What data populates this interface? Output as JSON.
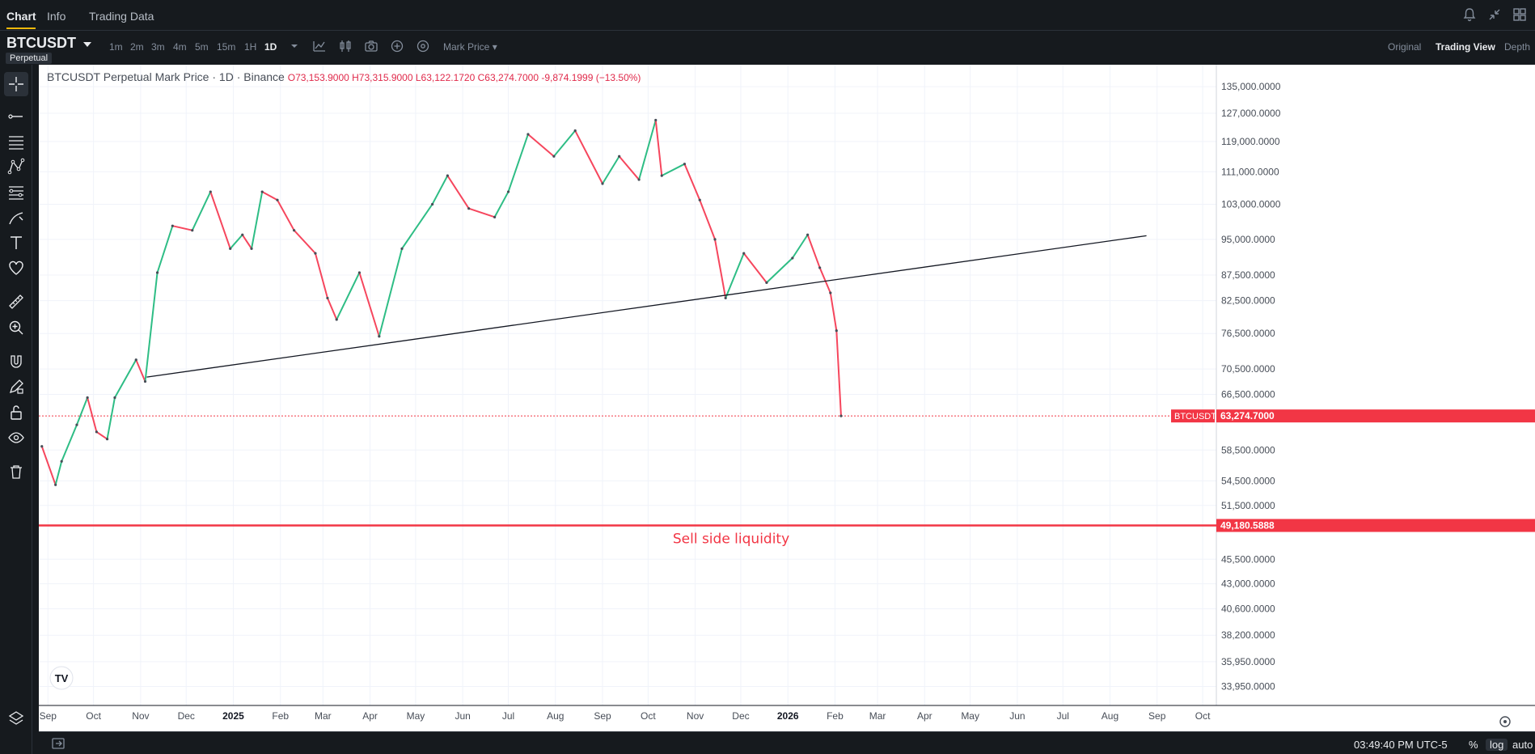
{
  "header": {
    "tabs": [
      {
        "label": "Chart",
        "active": true
      },
      {
        "label": "Info",
        "active": false
      },
      {
        "label": "Trading Data",
        "active": false
      }
    ],
    "icons": [
      "bell-icon",
      "collapse-icon",
      "grid-icon"
    ]
  },
  "toolbar": {
    "symbol": "BTCUSDT",
    "contract": "Perpetual",
    "intervals": [
      "1m",
      "2m",
      "3m",
      "4m",
      "5m",
      "15m",
      "1H",
      "1D"
    ],
    "active_interval": "1D",
    "price_type": "Mark Price",
    "views": [
      "Original",
      "Trading View",
      "Depth"
    ],
    "active_view": "Trading View"
  },
  "legend": {
    "title": "BTCUSDT Perpetual Mark Price · 1D · Binance",
    "values": "O73,153.9000  H73,315.9000  L63,122.1720  C63,274.7000  -9,874.1999 (−13.50%)"
  },
  "annotations": {
    "liquidity_text": "Sell side liquidity",
    "liquidity_price": 49180.5888,
    "liquidity_label": "49,180.5888",
    "last_price_label": "63,274.7000",
    "last_price_symbol": "BTCUSDT",
    "trendline": {
      "from": {
        "date": "2024-11-05",
        "price": 69200
      },
      "to": {
        "date": "2026-08-25",
        "price": 95800
      }
    }
  },
  "axes": {
    "y_scale": "log",
    "y_ticks": [
      "135,000.0000",
      "127,000.0000",
      "119,000.0000",
      "111,000.0000",
      "103,000.0000",
      "95,000.0000",
      "87,500.0000",
      "82,500.0000",
      "76,500.0000",
      "70,500.0000",
      "66,500.0000",
      "58,500.0000",
      "54,500.0000",
      "51,500.0000",
      "45,500.0000",
      "43,000.0000",
      "40,600.0000",
      "38,200.0000",
      "35,950.0000",
      "33,950.0000"
    ],
    "y_tick_values": [
      135000,
      127000,
      119000,
      111000,
      103000,
      95000,
      87500,
      82500,
      76500,
      70500,
      66500,
      58500,
      54500,
      51500,
      45500,
      43000,
      40600,
      38200,
      35950,
      33950
    ],
    "x_ticks": [
      "Sep",
      "Oct",
      "Nov",
      "Dec",
      "2025",
      "Feb",
      "Mar",
      "Apr",
      "May",
      "Jun",
      "Jul",
      "Aug",
      "Sep",
      "Oct",
      "Nov",
      "Dec",
      "2026",
      "Feb",
      "Mar",
      "Apr",
      "May",
      "Jun",
      "Jul",
      "Aug",
      "Sep",
      "Oct"
    ],
    "x_tick_dates": [
      "2024-09-01",
      "2024-10-01",
      "2024-11-01",
      "2024-12-01",
      "2025-01-01",
      "2025-02-01",
      "2025-03-01",
      "2025-04-01",
      "2025-05-01",
      "2025-06-01",
      "2025-07-01",
      "2025-08-01",
      "2025-09-01",
      "2025-10-01",
      "2025-11-01",
      "2025-12-01",
      "2026-01-01",
      "2026-02-01",
      "2026-03-01",
      "2026-04-01",
      "2026-05-01",
      "2026-06-01",
      "2026-07-01",
      "2026-08-01",
      "2026-09-01",
      "2026-10-01"
    ]
  },
  "chart_data": {
    "type": "line",
    "y_scale": "log",
    "ylim": [
      32500,
      142000
    ],
    "xlim": [
      "2024-08-26",
      "2026-10-10"
    ],
    "series": [
      {
        "values": [
          [
            "2024-08-28",
            59000
          ],
          [
            "2024-09-06",
            54000
          ],
          [
            "2024-09-10",
            57000
          ],
          [
            "2024-09-20",
            62000
          ],
          [
            "2024-09-27",
            66000
          ],
          [
            "2024-10-03",
            61000
          ],
          [
            "2024-10-10",
            60000
          ],
          [
            "2024-10-15",
            66000
          ],
          [
            "2024-10-29",
            72000
          ],
          [
            "2024-11-04",
            68500
          ],
          [
            "2024-11-12",
            88000
          ],
          [
            "2024-11-22",
            98000
          ],
          [
            "2024-12-05",
            97000
          ],
          [
            "2024-12-17",
            106000
          ],
          [
            "2024-12-30",
            93000
          ],
          [
            "2025-01-07",
            96000
          ],
          [
            "2025-01-13",
            93000
          ],
          [
            "2025-01-20",
            106000
          ],
          [
            "2025-01-30",
            104000
          ],
          [
            "2025-02-10",
            97000
          ],
          [
            "2025-02-24",
            92000
          ],
          [
            "2025-03-04",
            83000
          ],
          [
            "2025-03-10",
            79000
          ],
          [
            "2025-03-25",
            88000
          ],
          [
            "2025-04-07",
            76000
          ],
          [
            "2025-04-22",
            93000
          ],
          [
            "2025-05-12",
            103000
          ],
          [
            "2025-05-22",
            110000
          ],
          [
            "2025-06-05",
            102000
          ],
          [
            "2025-06-22",
            100000
          ],
          [
            "2025-07-01",
            106000
          ],
          [
            "2025-07-14",
            121000
          ],
          [
            "2025-07-31",
            115000
          ],
          [
            "2025-08-14",
            122000
          ],
          [
            "2025-09-01",
            108000
          ],
          [
            "2025-09-12",
            115000
          ],
          [
            "2025-09-25",
            109000
          ],
          [
            "2025-10-06",
            125000
          ],
          [
            "2025-10-10",
            110000
          ],
          [
            "2025-10-25",
            113000
          ],
          [
            "2025-11-04",
            104000
          ],
          [
            "2025-11-14",
            95000
          ],
          [
            "2025-11-21",
            83000
          ],
          [
            "2025-12-03",
            92000
          ],
          [
            "2025-12-18",
            86000
          ],
          [
            "2026-01-04",
            91000
          ],
          [
            "2026-01-14",
            96000
          ],
          [
            "2026-01-22",
            89000
          ],
          [
            "2026-01-29",
            84000
          ],
          [
            "2026-02-02",
            77000
          ],
          [
            "2026-02-05",
            63274.7
          ]
        ]
      }
    ]
  },
  "bottom": {
    "time": "03:49:40 PM UTC-5",
    "percent": "%",
    "log": "log",
    "auto": "auto"
  }
}
